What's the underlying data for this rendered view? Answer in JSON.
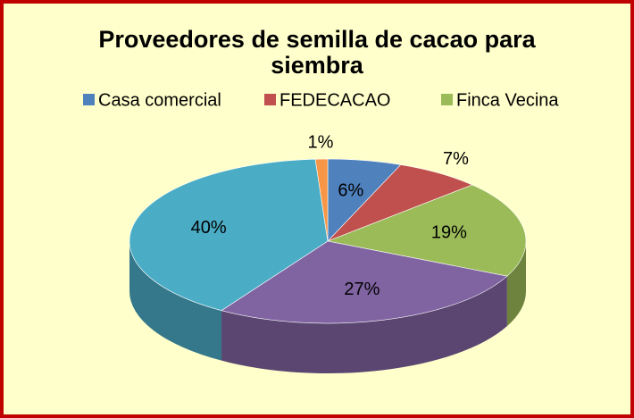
{
  "chart_data": {
    "type": "pie",
    "title": "Proveedores de semilla de cacao para siembra",
    "categories": [
      "Casa comercial",
      "FEDECACAO",
      "Finca Vecina",
      null,
      null,
      null
    ],
    "values": [
      6,
      7,
      19,
      27,
      40,
      1
    ],
    "value_labels": [
      "6%",
      "7%",
      "19%",
      "27%",
      "40%",
      "1%"
    ],
    "colors": [
      "#4f81bd",
      "#c0504d",
      "#9bbb59",
      "#8064a2",
      "#4bacc6",
      "#f79646"
    ],
    "legend": "top"
  }
}
